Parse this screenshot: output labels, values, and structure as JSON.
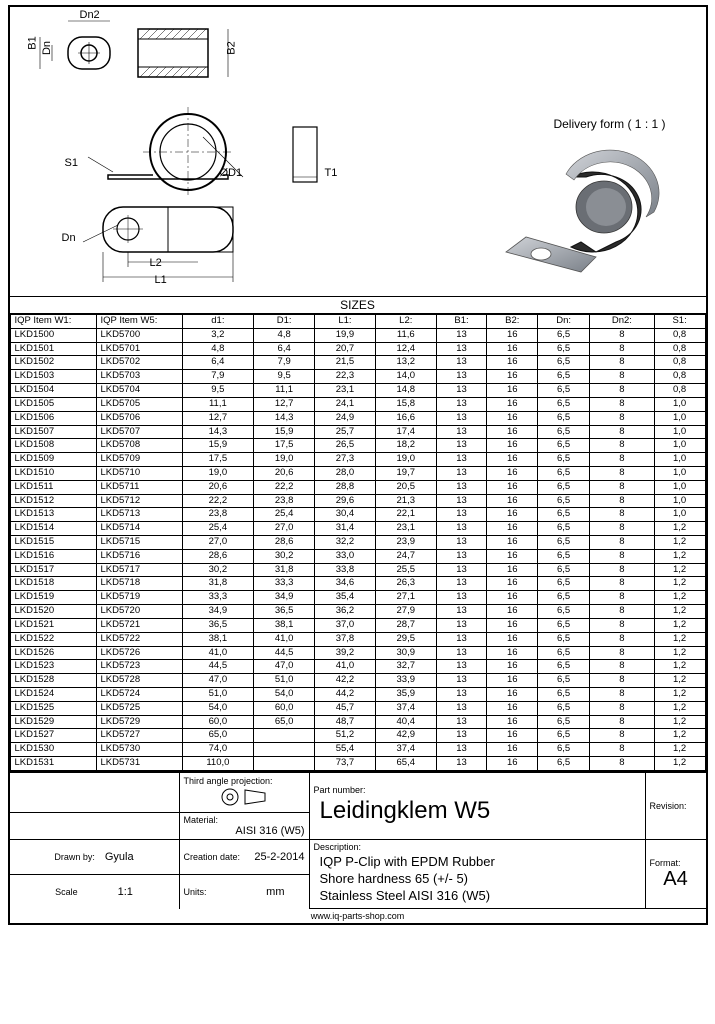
{
  "drawing": {
    "delivery_label": "Delivery form ( 1 : 1 )",
    "dims": {
      "B1": "B1",
      "Dn": "Dn",
      "Dn2": "Dn2",
      "B2": "B2",
      "S1": "S1",
      "D1": "ØD1",
      "T1": "T1",
      "Dn_b": "Dn",
      "L2": "L2",
      "L1": "L1"
    },
    "colors": {
      "line": "#000000",
      "render_dark": "#2b2b2b",
      "render_metal": "#9aa0a6",
      "render_highlight": "#d0d3d8"
    }
  },
  "sizes": {
    "title": "SIZES",
    "headers": [
      "IQP Item W1:",
      "IQP Item W5:",
      "d1:",
      "D1:",
      "L1:",
      "L2:",
      "B1:",
      "B2:",
      "Dn:",
      "Dn2:",
      "S1:"
    ],
    "rows": [
      [
        "LKD1500",
        "LKD5700",
        "3,2",
        "4,8",
        "19,9",
        "11,6",
        "13",
        "16",
        "6,5",
        "8",
        "0,8"
      ],
      [
        "LKD1501",
        "LKD5701",
        "4,8",
        "6,4",
        "20,7",
        "12,4",
        "13",
        "16",
        "6,5",
        "8",
        "0,8"
      ],
      [
        "LKD1502",
        "LKD5702",
        "6,4",
        "7,9",
        "21,5",
        "13,2",
        "13",
        "16",
        "6,5",
        "8",
        "0,8"
      ],
      [
        "LKD1503",
        "LKD5703",
        "7,9",
        "9,5",
        "22,3",
        "14,0",
        "13",
        "16",
        "6,5",
        "8",
        "0,8"
      ],
      [
        "LKD1504",
        "LKD5704",
        "9,5",
        "11,1",
        "23,1",
        "14,8",
        "13",
        "16",
        "6,5",
        "8",
        "0,8"
      ],
      [
        "LKD1505",
        "LKD5705",
        "11,1",
        "12,7",
        "24,1",
        "15,8",
        "13",
        "16",
        "6,5",
        "8",
        "1,0"
      ],
      [
        "LKD1506",
        "LKD5706",
        "12,7",
        "14,3",
        "24,9",
        "16,6",
        "13",
        "16",
        "6,5",
        "8",
        "1,0"
      ],
      [
        "LKD1507",
        "LKD5707",
        "14,3",
        "15,9",
        "25,7",
        "17,4",
        "13",
        "16",
        "6,5",
        "8",
        "1,0"
      ],
      [
        "LKD1508",
        "LKD5708",
        "15,9",
        "17,5",
        "26,5",
        "18,2",
        "13",
        "16",
        "6,5",
        "8",
        "1,0"
      ],
      [
        "LKD1509",
        "LKD5709",
        "17,5",
        "19,0",
        "27,3",
        "19,0",
        "13",
        "16",
        "6,5",
        "8",
        "1,0"
      ],
      [
        "LKD1510",
        "LKD5710",
        "19,0",
        "20,6",
        "28,0",
        "19,7",
        "13",
        "16",
        "6,5",
        "8",
        "1,0"
      ],
      [
        "LKD1511",
        "LKD5711",
        "20,6",
        "22,2",
        "28,8",
        "20,5",
        "13",
        "16",
        "6,5",
        "8",
        "1,0"
      ],
      [
        "LKD1512",
        "LKD5712",
        "22,2",
        "23,8",
        "29,6",
        "21,3",
        "13",
        "16",
        "6,5",
        "8",
        "1,0"
      ],
      [
        "LKD1513",
        "LKD5713",
        "23,8",
        "25,4",
        "30,4",
        "22,1",
        "13",
        "16",
        "6,5",
        "8",
        "1,0"
      ],
      [
        "LKD1514",
        "LKD5714",
        "25,4",
        "27,0",
        "31,4",
        "23,1",
        "13",
        "16",
        "6,5",
        "8",
        "1,2"
      ],
      [
        "LKD1515",
        "LKD5715",
        "27,0",
        "28,6",
        "32,2",
        "23,9",
        "13",
        "16",
        "6,5",
        "8",
        "1,2"
      ],
      [
        "LKD1516",
        "LKD5716",
        "28,6",
        "30,2",
        "33,0",
        "24,7",
        "13",
        "16",
        "6,5",
        "8",
        "1,2"
      ],
      [
        "LKD1517",
        "LKD5717",
        "30,2",
        "31,8",
        "33,8",
        "25,5",
        "13",
        "16",
        "6,5",
        "8",
        "1,2"
      ],
      [
        "LKD1518",
        "LKD5718",
        "31,8",
        "33,3",
        "34,6",
        "26,3",
        "13",
        "16",
        "6,5",
        "8",
        "1,2"
      ],
      [
        "LKD1519",
        "LKD5719",
        "33,3",
        "34,9",
        "35,4",
        "27,1",
        "13",
        "16",
        "6,5",
        "8",
        "1,2"
      ],
      [
        "LKD1520",
        "LKD5720",
        "34,9",
        "36,5",
        "36,2",
        "27,9",
        "13",
        "16",
        "6,5",
        "8",
        "1,2"
      ],
      [
        "LKD1521",
        "LKD5721",
        "36,5",
        "38,1",
        "37,0",
        "28,7",
        "13",
        "16",
        "6,5",
        "8",
        "1,2"
      ],
      [
        "LKD1522",
        "LKD5722",
        "38,1",
        "41,0",
        "37,8",
        "29,5",
        "13",
        "16",
        "6,5",
        "8",
        "1,2"
      ],
      [
        "LKD1526",
        "LKD5726",
        "41,0",
        "44,5",
        "39,2",
        "30,9",
        "13",
        "16",
        "6,5",
        "8",
        "1,2"
      ],
      [
        "LKD1523",
        "LKD5723",
        "44,5",
        "47,0",
        "41,0",
        "32,7",
        "13",
        "16",
        "6,5",
        "8",
        "1,2"
      ],
      [
        "LKD1528",
        "LKD5728",
        "47,0",
        "51,0",
        "42,2",
        "33,9",
        "13",
        "16",
        "6,5",
        "8",
        "1,2"
      ],
      [
        "LKD1524",
        "LKD5724",
        "51,0",
        "54,0",
        "44,2",
        "35,9",
        "13",
        "16",
        "6,5",
        "8",
        "1,2"
      ],
      [
        "LKD1525",
        "LKD5725",
        "54,0",
        "60,0",
        "45,7",
        "37,4",
        "13",
        "16",
        "6,5",
        "8",
        "1,2"
      ],
      [
        "LKD1529",
        "LKD5729",
        "60,0",
        "65,0",
        "48,7",
        "40,4",
        "13",
        "16",
        "6,5",
        "8",
        "1,2"
      ],
      [
        "LKD1527",
        "LKD5727",
        "65,0",
        "",
        "51,2",
        "42,9",
        "13",
        "16",
        "6,5",
        "8",
        "1,2"
      ],
      [
        "LKD1530",
        "LKD5730",
        "74,0",
        "",
        "55,4",
        "37,4",
        "13",
        "16",
        "6,5",
        "8",
        "1,2"
      ],
      [
        "LKD1531",
        "LKD5731",
        "110,0",
        "",
        "73,7",
        "65,4",
        "13",
        "16",
        "6,5",
        "8",
        "1,2"
      ]
    ]
  },
  "titleblock": {
    "third_angle_label": "Third angle projection:",
    "material_label": "Material:",
    "material_value": "AISI 316 (W5)",
    "part_number_label": "Part number:",
    "part_number_value": "Leidingklem W5",
    "description_label": "Description:",
    "description_lines": [
      "IQP P-Clip with EPDM Rubber",
      "Shore hardness 65 (+/- 5)",
      "Stainless Steel AISI 316 (W5)"
    ],
    "revision_label": "Revision:",
    "drawn_by_label": "Drawn by:",
    "drawn_by_value": "Gyula",
    "creation_date_label": "Creation date:",
    "creation_date_value": "25-2-2014",
    "format_label": "Format:",
    "format_value": "A4",
    "scale_label": "Scale",
    "scale_value": "1:1",
    "units_label": "Units:",
    "units_value": "mm",
    "url": "www.iq-parts-shop.com"
  }
}
